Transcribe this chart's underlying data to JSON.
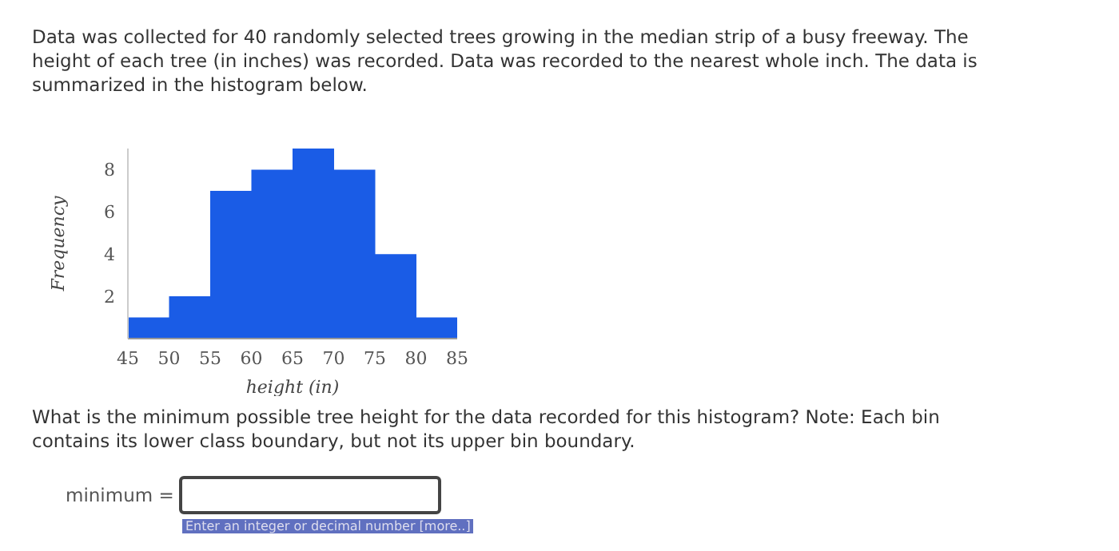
{
  "chart_data": {
    "type": "histogram",
    "title": "Data was collected for 40 randomly selected trees growing in the median strip of a busy freeway. The height of each tree (in inches) was recorded. Data was recorded to the nearest whole inch. The data is summarized in the histogram below.",
    "xlabel": "height (in)",
    "ylabel": "Frequency",
    "bins": [
      45,
      50,
      55,
      60,
      65,
      70,
      75,
      80,
      85
    ],
    "values": [
      1,
      2,
      7,
      8,
      9,
      8,
      4,
      1
    ],
    "color": "#1a5ce6",
    "xlim": [
      45,
      85
    ],
    "xticks": [
      45,
      50,
      55,
      60,
      65,
      70,
      75,
      80,
      85
    ],
    "ylim": [
      0,
      9
    ],
    "yticks": [
      2,
      4,
      6,
      8
    ],
    "grid": false,
    "annotations": [
      "What is the minimum possible tree height for the data recorded for this histogram? Note: Each bin contains its lower class boundary, but not its upper bin boundary.",
      "minimum =",
      "Enter an integer or decimal number [more..]"
    ]
  }
}
